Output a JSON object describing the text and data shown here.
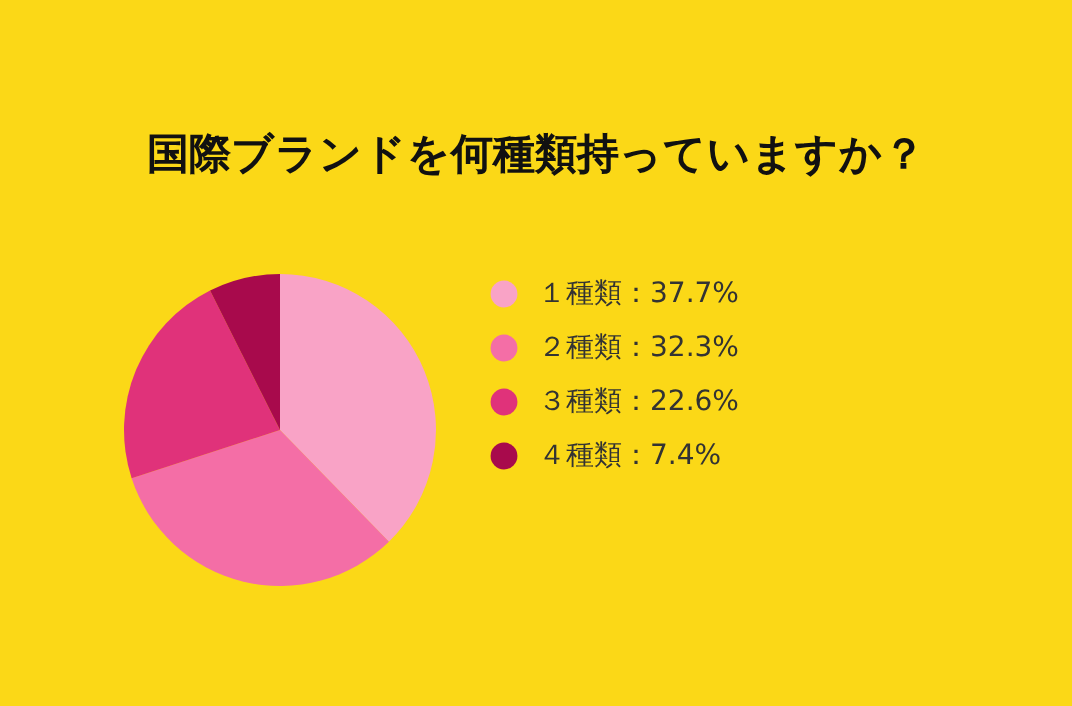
{
  "chart_data": {
    "type": "pie",
    "title": "国際ブランドを何種類持っていますか？",
    "categories": [
      "１種類：37.7%",
      "２種類：32.3%",
      "３種類：22.6%",
      "４種類：7.4%"
    ],
    "values": [
      37.7,
      32.3,
      22.6,
      7.4
    ],
    "colors": [
      "#f9a3c6",
      "#f46ea6",
      "#e0327a",
      "#a80a4c"
    ],
    "legend": "right"
  }
}
